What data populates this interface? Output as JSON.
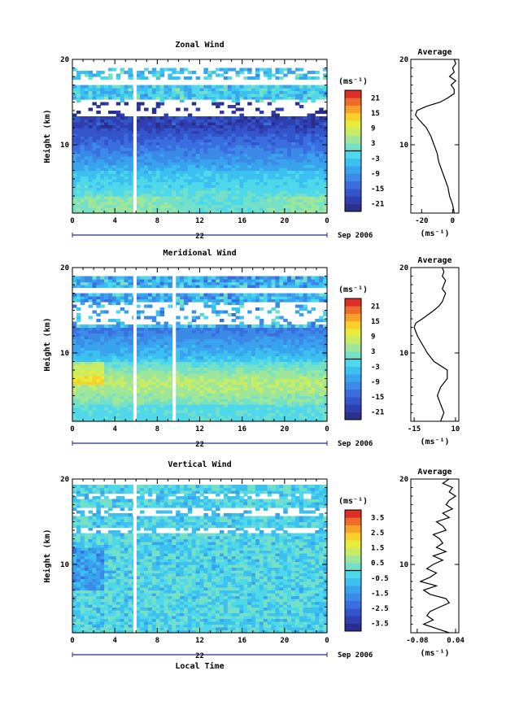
{
  "chart_data": [
    {
      "type": "heatmap",
      "title": "Zonal Wind",
      "ylabel": "Height (km)",
      "ylim": [
        2,
        20
      ],
      "xlim": [
        0,
        24
      ],
      "x_ticks": [
        "0",
        "4",
        "8",
        "12",
        "16",
        "20",
        "0"
      ],
      "y_ticks": [
        "20",
        "10"
      ],
      "date_label": "Sep 2006",
      "day_label": "22",
      "colorbar": {
        "unit": "(ms⁻¹)",
        "ticks": [
          "21",
          "15",
          "9",
          "3",
          "-3",
          "-9",
          "-15",
          "-21"
        ],
        "range": [
          -24,
          24
        ]
      },
      "white_gap_columns_lt": [
        5.9
      ],
      "profile": {
        "title": "Average",
        "xlabel": "(ms⁻¹)",
        "x_ticks": [
          "-20",
          "0"
        ],
        "xlim": [
          -27,
          4
        ],
        "y_ticks": [
          "20",
          "10"
        ],
        "height": [
          2,
          3,
          4,
          5,
          6,
          7,
          8,
          9,
          10,
          11,
          12,
          13,
          13.5,
          14,
          14.5,
          15,
          15.5,
          16,
          16.5,
          17,
          17.5,
          18,
          18.5,
          19,
          19.5,
          20
        ],
        "values": [
          1,
          0,
          -2,
          -3,
          -5,
          -7,
          -9,
          -10,
          -12,
          -14,
          -17,
          -22,
          -24,
          -23,
          -17,
          -8,
          -3,
          1,
          1,
          -1,
          2,
          -2,
          1,
          0,
          2,
          1
        ]
      }
    },
    {
      "type": "heatmap",
      "title": "Meridional Wind",
      "ylabel": "Height (km)",
      "ylim": [
        2,
        20
      ],
      "xlim": [
        0,
        24
      ],
      "x_ticks": [
        "0",
        "4",
        "8",
        "12",
        "16",
        "20",
        "0"
      ],
      "y_ticks": [
        "20",
        "10"
      ],
      "date_label": "Sep 2006",
      "day_label": "22",
      "colorbar": {
        "unit": "(ms⁻¹)",
        "ticks": [
          "21",
          "15",
          "9",
          "3",
          "-3",
          "-9",
          "-15",
          "-21"
        ],
        "range": [
          -24,
          24
        ]
      },
      "white_gap_columns_lt": [
        5.9,
        9.6
      ],
      "profile": {
        "title": "Average",
        "xlabel": "(ms⁻¹)",
        "x_ticks": [
          "-15",
          "10"
        ],
        "xlim": [
          -17,
          12
        ],
        "y_ticks": [
          "20",
          "10"
        ],
        "height": [
          2,
          3,
          4,
          5,
          6,
          7,
          8,
          9,
          10,
          11,
          12,
          13,
          13.5,
          14,
          15,
          15.5,
          16,
          16.5,
          17,
          17.5,
          18,
          18.5,
          19,
          19.5,
          20
        ],
        "values": [
          1,
          3,
          1,
          -1,
          1,
          5,
          5,
          -3,
          -7,
          -10,
          -13,
          -15,
          -14,
          -10,
          -3,
          0,
          2,
          3,
          4,
          2,
          3,
          4,
          2,
          3,
          2
        ]
      }
    },
    {
      "type": "heatmap",
      "title": "Vertical Wind",
      "xlabel": "Local Time",
      "ylabel": "Height (km)",
      "ylim": [
        2,
        20
      ],
      "xlim": [
        0,
        24
      ],
      "x_ticks": [
        "0",
        "4",
        "8",
        "12",
        "16",
        "20",
        "0"
      ],
      "y_ticks": [
        "20",
        "10"
      ],
      "date_label": "Sep 2006",
      "day_label": "22",
      "colorbar": {
        "unit": "(ms⁻¹)",
        "ticks": [
          "3.5",
          "2.5",
          "1.5",
          "0.5",
          "-0.5",
          "-1.5",
          "-2.5",
          "-3.5"
        ],
        "range": [
          -4,
          4
        ]
      },
      "white_gap_columns_lt": [
        5.9
      ],
      "profile": {
        "title": "Average",
        "xlabel": "(ms⁻¹)",
        "x_ticks": [
          "-0.08",
          "0.04"
        ],
        "xlim": [
          -0.1,
          0.05
        ],
        "y_ticks": [
          "20",
          "10"
        ],
        "height": [
          2,
          2.5,
          3,
          3.5,
          4,
          4.5,
          5,
          5.5,
          6,
          6.5,
          7,
          7.5,
          8,
          8.5,
          9,
          9.5,
          10,
          10.5,
          11,
          11.5,
          12,
          12.5,
          13,
          13.5,
          14,
          14.5,
          15,
          15.5,
          16,
          16.5,
          17,
          17.5,
          18,
          18.5,
          19,
          19.5,
          20
        ],
        "values": [
          0.02,
          -0.02,
          -0.06,
          -0.03,
          -0.05,
          -0.04,
          -0.01,
          0.02,
          0.01,
          -0.04,
          -0.06,
          -0.02,
          -0.07,
          -0.04,
          -0.02,
          -0.05,
          -0.03,
          0.0,
          -0.03,
          0.01,
          -0.02,
          0.0,
          -0.01,
          -0.03,
          0.01,
          0.0,
          -0.02,
          0.02,
          0.0,
          0.03,
          0.01,
          0.02,
          0.04,
          0.02,
          0.03,
          0.0,
          0.02
        ]
      }
    }
  ]
}
